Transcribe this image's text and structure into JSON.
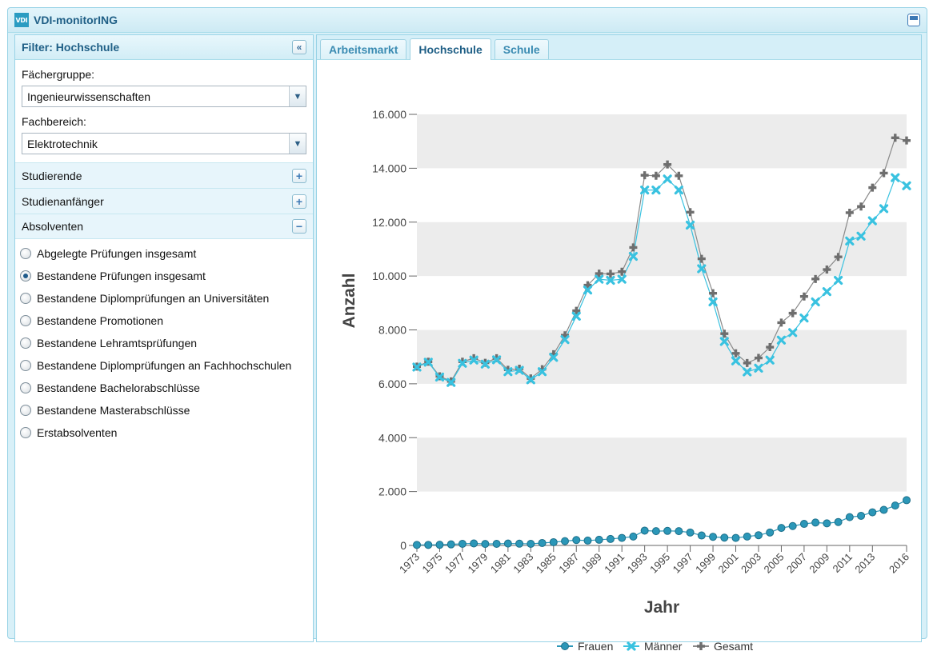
{
  "window": {
    "logo_text": "VDI",
    "title": "VDI-monitorING"
  },
  "filter_panel": {
    "title": "Filter: Hochschule",
    "faechergruppe_label": "Fächergruppe:",
    "faechergruppe_value": "Ingenieurwissenschaften",
    "fachbereich_label": "Fachbereich:",
    "fachbereich_value": "Elektrotechnik",
    "sections": [
      {
        "label": "Studierende",
        "toggle": "+"
      },
      {
        "label": "Studienanfänger",
        "toggle": "+"
      },
      {
        "label": "Absolventen",
        "toggle": "−"
      }
    ],
    "options": [
      "Abgelegte Prüfungen insgesamt",
      "Bestandene Prüfungen insgesamt",
      "Bestandene Diplomprüfungen an Universitäten",
      "Bestandene Promotionen",
      "Bestandene Lehramtsprüfungen",
      "Bestandene Diplomprüfungen an Fachhochschulen",
      "Bestandene Bachelorabschlüsse",
      "Bestandene Masterabschlüsse",
      "Erstabsolventen"
    ],
    "selected_option": "Bestandene Prüfungen insgesamt"
  },
  "tabs": [
    {
      "label": "Arbeitsmarkt",
      "active": false
    },
    {
      "label": "Hochschule",
      "active": true
    },
    {
      "label": "Schule",
      "active": false
    }
  ],
  "chart_data": {
    "type": "line",
    "title": "",
    "xlabel": "Jahr",
    "ylabel": "Anzahl",
    "ylim": [
      0,
      16000
    ],
    "yticks": [
      "0",
      "2.000",
      "4.000",
      "6.000",
      "8.000",
      "10.000",
      "12.000",
      "14.000",
      "16.000"
    ],
    "x": [
      1973,
      1974,
      1975,
      1976,
      1977,
      1978,
      1979,
      1980,
      1981,
      1982,
      1983,
      1984,
      1985,
      1986,
      1987,
      1988,
      1989,
      1990,
      1991,
      1992,
      1993,
      1994,
      1995,
      1996,
      1997,
      1998,
      1999,
      2000,
      2001,
      2002,
      2003,
      2004,
      2005,
      2006,
      2007,
      2008,
      2009,
      2010,
      2011,
      2012,
      2013,
      2014,
      2015,
      2016
    ],
    "xtick_labels": [
      "1973",
      "1975",
      "1977",
      "1979",
      "1981",
      "1983",
      "1985",
      "1987",
      "1989",
      "1991",
      "1993",
      "1995",
      "1997",
      "1999",
      "2001",
      "2003",
      "2005",
      "2007",
      "2009",
      "2011",
      "2013",
      "2016"
    ],
    "legend_position": "bottom",
    "colors": {
      "Frauen": "#2b97b8",
      "Männer": "#39c2e0",
      "Gesamt": "#8a8a8a",
      "band": "#ececec"
    },
    "series": [
      {
        "name": "Frauen",
        "values": [
          20,
          20,
          25,
          40,
          60,
          75,
          55,
          60,
          70,
          65,
          60,
          90,
          120,
          160,
          200,
          180,
          210,
          240,
          280,
          330,
          550,
          530,
          540,
          530,
          480,
          370,
          320,
          290,
          280,
          330,
          380,
          480,
          650,
          720,
          800,
          850,
          820,
          870,
          1050,
          1100,
          1230,
          1320,
          1480,
          1680
        ]
      },
      {
        "name": "Männer",
        "values": [
          6620,
          6800,
          6250,
          6050,
          6760,
          6880,
          6730,
          6890,
          6450,
          6500,
          6150,
          6450,
          6980,
          7640,
          8510,
          9480,
          9880,
          9840,
          9880,
          10730,
          13190,
          13190,
          13600,
          13190,
          11890,
          10270,
          9040,
          7570,
          6850,
          6440,
          6580,
          6880,
          7620,
          7900,
          8440,
          9040,
          9420,
          9840,
          11300,
          11480,
          12050,
          12500,
          13650,
          13350
        ]
      },
      {
        "name": "Gesamt",
        "values": [
          6640,
          6820,
          6280,
          6090,
          6820,
          6950,
          6780,
          6950,
          6520,
          6560,
          6200,
          6540,
          7100,
          7800,
          8710,
          9660,
          10090,
          10080,
          10160,
          11060,
          13740,
          13720,
          14140,
          13720,
          12370,
          10640,
          9360,
          7860,
          7130,
          6770,
          6960,
          7360,
          8270,
          8620,
          9240,
          9890,
          10240,
          10710,
          12350,
          12580,
          13280,
          13820,
          15130,
          15030
        ]
      }
    ]
  }
}
